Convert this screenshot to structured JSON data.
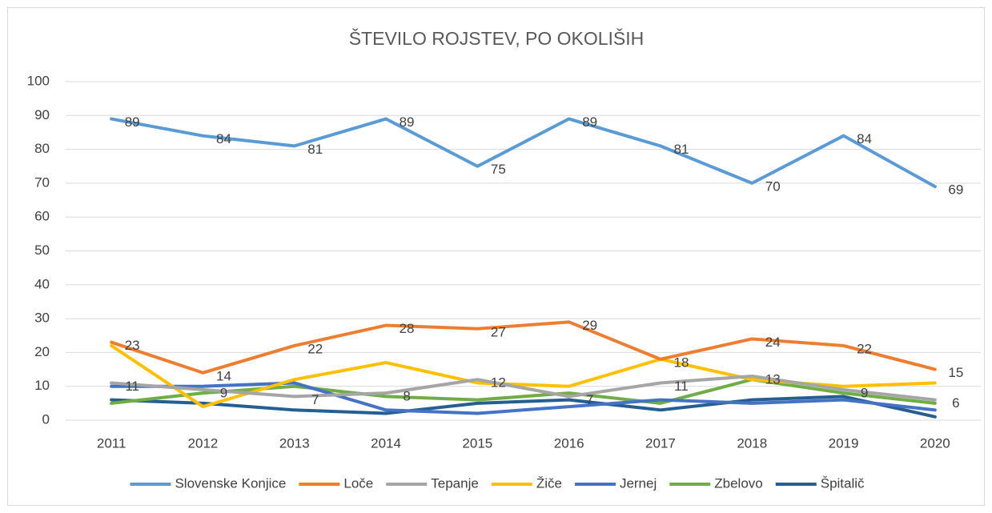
{
  "chart_data": {
    "type": "line",
    "title": "ŠTEVILO ROJSTEV, PO OKOLIŠIH",
    "categories": [
      "2011",
      "2012",
      "2013",
      "2014",
      "2015",
      "2016",
      "2017",
      "2018",
      "2019",
      "2020"
    ],
    "series": [
      {
        "name": "Slovenske Konjice",
        "color": "#5b9bd5",
        "show_labels": true,
        "values": [
          89,
          84,
          81,
          89,
          75,
          89,
          81,
          70,
          84,
          69
        ]
      },
      {
        "name": "Loče",
        "color": "#ed7d31",
        "show_labels": true,
        "values": [
          23,
          14,
          22,
          28,
          27,
          29,
          18,
          24,
          22,
          15
        ]
      },
      {
        "name": "Tepanje",
        "color": "#a5a5a5",
        "show_labels": true,
        "values": [
          11,
          9,
          7,
          8,
          12,
          7,
          11,
          13,
          9,
          6
        ]
      },
      {
        "name": "Žiče",
        "color": "#ffc000",
        "show_labels": false,
        "values": [
          22,
          4,
          12,
          17,
          11,
          10,
          18,
          12,
          10,
          11
        ]
      },
      {
        "name": "Jernej",
        "color": "#4472c4",
        "show_labels": false,
        "values": [
          10,
          10,
          11,
          3,
          2,
          4,
          6,
          5,
          6,
          3
        ]
      },
      {
        "name": "Zbelovo",
        "color": "#70ad47",
        "show_labels": false,
        "values": [
          5,
          8,
          10,
          7,
          6,
          8,
          5,
          12,
          8,
          5
        ]
      },
      {
        "name": "Špitalič",
        "color": "#255e91",
        "show_labels": false,
        "values": [
          6,
          5,
          3,
          2,
          5,
          6,
          3,
          6,
          7,
          1
        ]
      }
    ],
    "ylim": [
      0,
      100
    ],
    "yticks": [
      0,
      10,
      20,
      30,
      40,
      50,
      60,
      70,
      80,
      90,
      100
    ],
    "grid": true,
    "legend": "bottom"
  }
}
